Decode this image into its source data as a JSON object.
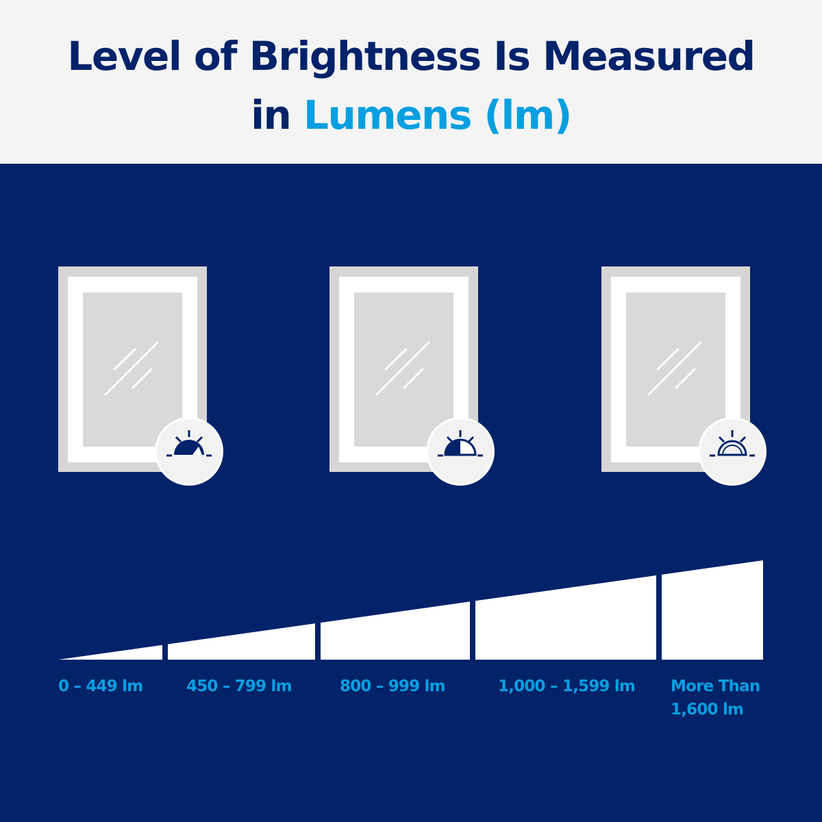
{
  "title": {
    "line1": "Level of Brightness Is Measured",
    "line2_prefix": "in",
    "line2_accent": "Lumens (lm)"
  },
  "colors": {
    "navy": "#022269",
    "accent": "#079fe0",
    "header_bg": "#f4f4f4"
  },
  "windows": [
    {
      "icon": "sun-dim-icon",
      "fill_level": "mostly dark"
    },
    {
      "icon": "sun-medium-icon",
      "fill_level": "half dark"
    },
    {
      "icon": "sun-bright-icon",
      "fill_level": "outline"
    }
  ],
  "scale": {
    "labels": [
      "0 – 449 lm",
      "450 – 799 lm",
      "800 – 999 lm",
      "1,000 – 1,599 lm",
      "More Than",
      "1,600 lm"
    ]
  }
}
